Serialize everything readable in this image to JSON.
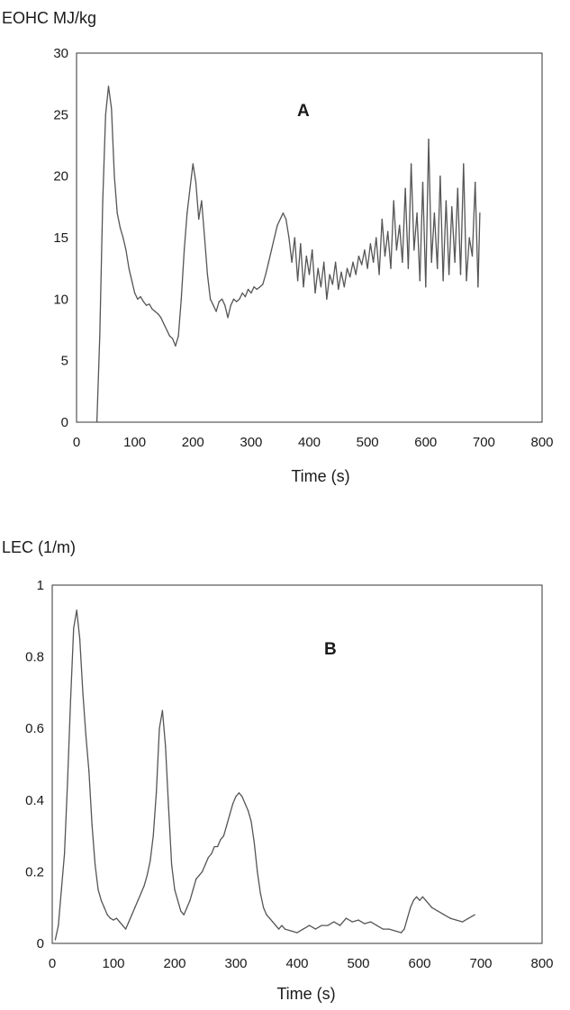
{
  "chart_data": [
    {
      "type": "line",
      "panel_label": "A",
      "ylabel": "EOHC MJ/kg",
      "xlabel": "Time (s)",
      "xlim": [
        0,
        800
      ],
      "ylim": [
        0,
        30
      ],
      "xticks": [
        "0",
        "100",
        "200",
        "300",
        "400",
        "500",
        "600",
        "700",
        "800"
      ],
      "yticks": [
        "0",
        "5",
        "10",
        "15",
        "20",
        "25",
        "30"
      ],
      "grid": false,
      "color": "#555555",
      "x": [
        35,
        40,
        45,
        50,
        55,
        60,
        65,
        70,
        75,
        80,
        85,
        90,
        95,
        100,
        105,
        110,
        115,
        120,
        125,
        130,
        135,
        140,
        145,
        150,
        155,
        160,
        165,
        170,
        175,
        180,
        185,
        190,
        195,
        200,
        205,
        210,
        215,
        220,
        225,
        230,
        235,
        240,
        245,
        250,
        255,
        260,
        265,
        270,
        275,
        280,
        285,
        290,
        295,
        300,
        305,
        310,
        315,
        320,
        325,
        330,
        335,
        340,
        345,
        350,
        355,
        360,
        365,
        370,
        375,
        380,
        385,
        390,
        395,
        400,
        405,
        410,
        415,
        420,
        425,
        430,
        435,
        440,
        445,
        450,
        455,
        460,
        465,
        470,
        475,
        480,
        485,
        490,
        495,
        500,
        505,
        510,
        515,
        520,
        525,
        530,
        535,
        540,
        545,
        550,
        555,
        560,
        565,
        570,
        575,
        580,
        585,
        590,
        595,
        600,
        605,
        610,
        615,
        620,
        625,
        630,
        635,
        640,
        645,
        650,
        655,
        660,
        665,
        670,
        675,
        680,
        685,
        690,
        693
      ],
      "values": [
        0,
        7,
        18,
        25,
        27.3,
        25.5,
        20,
        17,
        15.8,
        15,
        14,
        12.5,
        11.5,
        10.5,
        10,
        10.2,
        9.8,
        9.5,
        9.6,
        9.2,
        9,
        8.8,
        8.5,
        8,
        7.5,
        7,
        6.8,
        6.2,
        7,
        10,
        14,
        17,
        19,
        21,
        19.5,
        16.5,
        18,
        15,
        12,
        10,
        9.5,
        9,
        9.8,
        10,
        9.5,
        8.5,
        9.5,
        10,
        9.8,
        10,
        10.5,
        10.2,
        10.8,
        10.5,
        11,
        10.8,
        11,
        11.2,
        12,
        13,
        14,
        15,
        16,
        16.5,
        17,
        16.5,
        15,
        13,
        15,
        11.5,
        14.5,
        11,
        13.5,
        12,
        14,
        10.5,
        12.5,
        11,
        13,
        10,
        12,
        11.2,
        13,
        10.8,
        12.2,
        11,
        12.5,
        11.8,
        13,
        12,
        13.5,
        12.8,
        14,
        12.5,
        14.5,
        13,
        15,
        12,
        16.5,
        13.5,
        15.5,
        12.5,
        18,
        14,
        16,
        13,
        19,
        12.5,
        21,
        14,
        17,
        11.5,
        19.5,
        11,
        23,
        13,
        17,
        12.5,
        20,
        11.5,
        18,
        12,
        17.5,
        13,
        19,
        12,
        21,
        11.5,
        15,
        13.5,
        19.5,
        11,
        17
      ]
    },
    {
      "type": "line",
      "panel_label": "B",
      "ylabel": "LEC (1/m)",
      "xlabel": "Time (s)",
      "xlim": [
        0,
        800
      ],
      "ylim": [
        0,
        1
      ],
      "xticks": [
        "0",
        "100",
        "200",
        "300",
        "400",
        "500",
        "600",
        "700",
        "800"
      ],
      "yticks": [
        "0",
        "0.2",
        "0.4",
        "0.6",
        "0.8",
        "1"
      ],
      "grid": false,
      "color": "#555555",
      "x": [
        5,
        10,
        15,
        20,
        25,
        30,
        35,
        40,
        45,
        50,
        55,
        60,
        65,
        70,
        75,
        80,
        85,
        90,
        95,
        100,
        105,
        110,
        115,
        120,
        125,
        130,
        135,
        140,
        145,
        150,
        155,
        160,
        165,
        170,
        175,
        180,
        185,
        190,
        195,
        200,
        205,
        210,
        215,
        220,
        225,
        230,
        235,
        240,
        245,
        250,
        255,
        260,
        265,
        270,
        275,
        280,
        285,
        290,
        295,
        300,
        305,
        310,
        315,
        320,
        325,
        330,
        335,
        340,
        345,
        350,
        355,
        360,
        365,
        370,
        375,
        380,
        390,
        400,
        410,
        420,
        430,
        440,
        450,
        460,
        470,
        480,
        490,
        500,
        510,
        520,
        530,
        540,
        550,
        560,
        570,
        575,
        580,
        585,
        590,
        595,
        600,
        605,
        610,
        615,
        620,
        630,
        640,
        650,
        660,
        670,
        680,
        690
      ],
      "values": [
        0.01,
        0.05,
        0.15,
        0.25,
        0.45,
        0.68,
        0.88,
        0.93,
        0.85,
        0.7,
        0.58,
        0.48,
        0.33,
        0.22,
        0.15,
        0.12,
        0.1,
        0.08,
        0.07,
        0.065,
        0.07,
        0.06,
        0.05,
        0.04,
        0.06,
        0.08,
        0.1,
        0.12,
        0.14,
        0.16,
        0.19,
        0.23,
        0.3,
        0.42,
        0.6,
        0.65,
        0.55,
        0.38,
        0.22,
        0.15,
        0.12,
        0.09,
        0.08,
        0.1,
        0.12,
        0.15,
        0.18,
        0.19,
        0.2,
        0.22,
        0.24,
        0.25,
        0.27,
        0.27,
        0.29,
        0.3,
        0.33,
        0.36,
        0.39,
        0.41,
        0.42,
        0.41,
        0.39,
        0.37,
        0.34,
        0.28,
        0.2,
        0.14,
        0.1,
        0.08,
        0.07,
        0.06,
        0.05,
        0.04,
        0.05,
        0.04,
        0.035,
        0.03,
        0.04,
        0.05,
        0.04,
        0.05,
        0.05,
        0.06,
        0.05,
        0.07,
        0.06,
        0.065,
        0.055,
        0.06,
        0.05,
        0.04,
        0.04,
        0.035,
        0.03,
        0.04,
        0.07,
        0.1,
        0.12,
        0.13,
        0.12,
        0.13,
        0.12,
        0.11,
        0.1,
        0.09,
        0.08,
        0.07,
        0.065,
        0.06,
        0.07,
        0.08
      ]
    }
  ]
}
